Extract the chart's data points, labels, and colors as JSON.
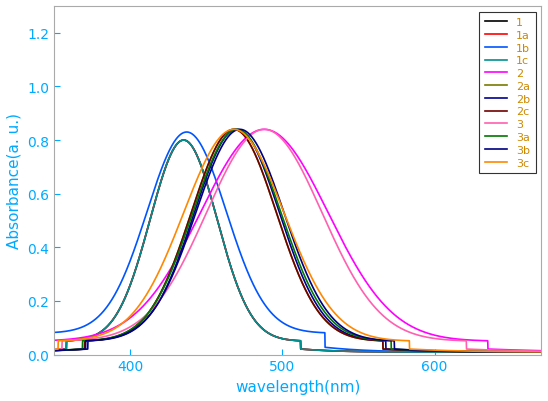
{
  "series": [
    {
      "label": "1",
      "color": "#000000",
      "peak": 435,
      "sigma": 22,
      "amp": 0.75,
      "baseline": 0.05
    },
    {
      "label": "1a",
      "color": "#ff0000",
      "peak": 435,
      "sigma": 22,
      "amp": 0.75,
      "baseline": 0.05
    },
    {
      "label": "1b",
      "color": "#0055ff",
      "peak": 437,
      "sigma": 26,
      "amp": 0.75,
      "baseline": 0.08
    },
    {
      "label": "1c",
      "color": "#009090",
      "peak": 435,
      "sigma": 22,
      "amp": 0.75,
      "baseline": 0.05
    },
    {
      "label": "2",
      "color": "#ff00ff",
      "peak": 488,
      "sigma": 42,
      "amp": 0.79,
      "baseline": 0.05
    },
    {
      "label": "2a",
      "color": "#7a7a00",
      "peak": 468,
      "sigma": 28,
      "amp": 0.79,
      "baseline": 0.05
    },
    {
      "label": "2b",
      "color": "#000090",
      "peak": 470,
      "sigma": 28,
      "amp": 0.79,
      "baseline": 0.05
    },
    {
      "label": "2c",
      "color": "#700000",
      "peak": 468,
      "sigma": 28,
      "amp": 0.79,
      "baseline": 0.05
    },
    {
      "label": "3",
      "color": "#ff60b0",
      "peak": 488,
      "sigma": 38,
      "amp": 0.79,
      "baseline": 0.05
    },
    {
      "label": "3a",
      "color": "#007700",
      "peak": 470,
      "sigma": 29,
      "amp": 0.79,
      "baseline": 0.05
    },
    {
      "label": "3b",
      "color": "#000080",
      "peak": 472,
      "sigma": 29,
      "amp": 0.79,
      "baseline": 0.05
    },
    {
      "label": "3c",
      "color": "#ff8800",
      "peak": 468,
      "sigma": 33,
      "amp": 0.79,
      "baseline": 0.05
    }
  ],
  "xlim": [
    350,
    670
  ],
  "ylim": [
    0.0,
    1.3
  ],
  "xticks": [
    400,
    500,
    600
  ],
  "yticks": [
    0.0,
    0.2,
    0.4,
    0.6,
    0.8,
    1.0,
    1.2
  ],
  "xlabel": "wavelength(nm)",
  "ylabel": "Absorbance(a. u.)",
  "xlabel_color": "#00aaff",
  "ylabel_color": "#00aaff",
  "tick_color": "#00aaff",
  "legend_text_color": "#cc8800",
  "figsize": [
    5.48,
    4.02
  ],
  "dpi": 100,
  "spine_color": "#aaaaaa",
  "bg_color": "#ffffff"
}
